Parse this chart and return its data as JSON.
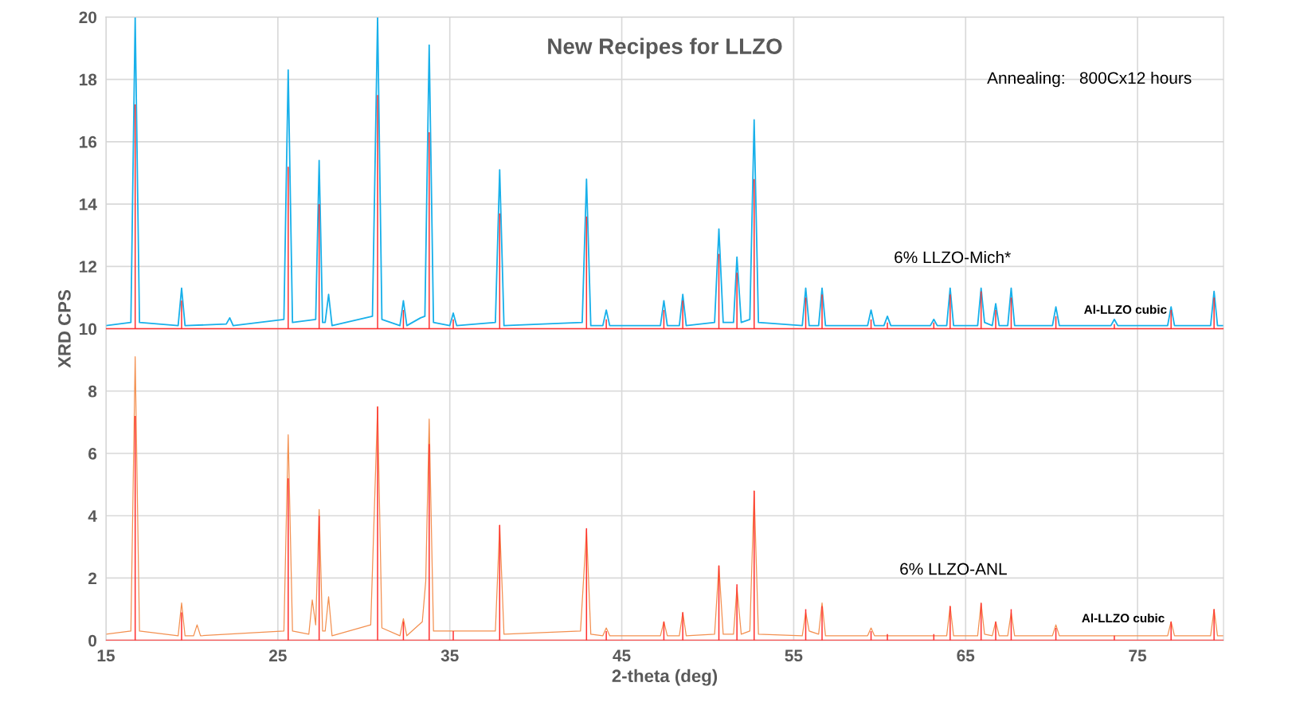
{
  "chart_data": {
    "type": "line",
    "title": "New Recipes for LLZO",
    "xlabel": "2-theta (deg)",
    "ylabel": "XRD CPS",
    "xlim": [
      15,
      80
    ],
    "xticks": [
      15,
      25,
      35,
      45,
      55,
      65,
      75
    ],
    "ylim": [
      0,
      20
    ],
    "yticks": [
      0,
      2,
      4,
      6,
      8,
      10,
      12,
      14,
      16,
      18,
      20
    ],
    "grid": true,
    "annotations": [
      "Annealing:   800Cx12 hours"
    ],
    "ref_lines": [
      {
        "axis": "y",
        "value": 10,
        "color": "#ff3030"
      },
      {
        "axis": "y",
        "value": 0,
        "color": "#ff3030"
      }
    ],
    "series": [
      {
        "name": "6% LLZO-Mich*",
        "color": "#18b0ea",
        "x": [
          15,
          16.45,
          16.7,
          16.95,
          19.2,
          19.4,
          19.6,
          22.0,
          22.2,
          22.4,
          25.35,
          25.6,
          25.85,
          27.2,
          27.4,
          27.6,
          27.75,
          27.95,
          28.15,
          30.5,
          30.8,
          31.05,
          32.1,
          32.3,
          32.5,
          33.3,
          33.55,
          33.8,
          34.05,
          35.0,
          35.2,
          35.4,
          37.65,
          37.9,
          38.15,
          42.7,
          42.95,
          43.2,
          43.9,
          44.1,
          44.3,
          47.25,
          47.45,
          47.65,
          48.35,
          48.55,
          48.75,
          50.4,
          50.65,
          50.9,
          51.5,
          51.7,
          51.95,
          52.45,
          52.7,
          52.95,
          55.5,
          55.7,
          55.9,
          56.45,
          56.65,
          56.85,
          59.3,
          59.5,
          59.7,
          60.25,
          60.45,
          60.65,
          62.95,
          63.15,
          63.35,
          63.9,
          64.1,
          64.3,
          65.7,
          65.9,
          66.1,
          66.55,
          66.75,
          66.95,
          67.45,
          67.65,
          67.85,
          70.05,
          70.25,
          70.45,
          73.45,
          73.65,
          73.85,
          76.75,
          76.95,
          77.15,
          79.25,
          79.45,
          79.65,
          80
        ],
        "values": [
          10.1,
          10.2,
          20,
          10.2,
          10.1,
          11.3,
          10.1,
          10.15,
          10.35,
          10.1,
          10.3,
          18.3,
          10.2,
          10.3,
          15.4,
          10.2,
          10.2,
          11.1,
          10.1,
          10.4,
          20,
          10.3,
          10.1,
          10.9,
          10.1,
          10.35,
          10.4,
          19.1,
          10.2,
          10.1,
          10.5,
          10.1,
          10.2,
          15.1,
          10.1,
          10.2,
          14.8,
          10.1,
          10.1,
          10.6,
          10.1,
          10.1,
          10.9,
          10.1,
          10.1,
          11.1,
          10.1,
          10.2,
          13.2,
          10.2,
          10.2,
          12.3,
          10.2,
          10.3,
          16.7,
          10.2,
          10.1,
          11.3,
          10.1,
          10.1,
          11.3,
          10.1,
          10.1,
          10.6,
          10.1,
          10.1,
          10.4,
          10.1,
          10.1,
          10.3,
          10.1,
          10.1,
          11.3,
          10.1,
          10.1,
          11.3,
          10.2,
          10.1,
          10.8,
          10.1,
          10.1,
          11.3,
          10.1,
          10.1,
          10.7,
          10.1,
          10.1,
          10.3,
          10.1,
          10.1,
          10.7,
          10.1,
          10.1,
          11.2,
          10.1,
          10.1
        ]
      },
      {
        "name": "6% LLZO-ANL",
        "color": "#f39050",
        "x": [
          15,
          16.45,
          16.7,
          16.95,
          19.2,
          19.4,
          19.6,
          20.1,
          20.3,
          20.5,
          25.35,
          25.6,
          25.85,
          26.8,
          27.0,
          27.2,
          27.4,
          27.6,
          27.75,
          27.95,
          28.15,
          30.4,
          30.8,
          31.05,
          32.1,
          32.3,
          32.5,
          33.4,
          33.6,
          33.8,
          34.05,
          37.65,
          37.9,
          38.15,
          42.6,
          42.95,
          43.2,
          43.9,
          44.1,
          44.3,
          47.25,
          47.45,
          47.65,
          48.35,
          48.55,
          48.75,
          50.4,
          50.65,
          50.9,
          51.5,
          51.7,
          51.95,
          52.45,
          52.7,
          52.95,
          55.5,
          55.7,
          55.9,
          56.45,
          56.65,
          56.85,
          59.3,
          59.5,
          59.7,
          63.9,
          64.1,
          64.3,
          65.7,
          65.9,
          66.1,
          66.55,
          66.75,
          66.95,
          67.45,
          67.65,
          67.85,
          70.05,
          70.25,
          70.45,
          76.75,
          76.95,
          77.15,
          79.25,
          79.45,
          79.65,
          80
        ],
        "values": [
          0.2,
          0.3,
          9.1,
          0.3,
          0.15,
          1.2,
          0.15,
          0.15,
          0.5,
          0.15,
          0.3,
          6.6,
          0.3,
          0.2,
          1.3,
          0.5,
          4.2,
          0.3,
          0.3,
          1.4,
          0.15,
          0.5,
          7.5,
          0.4,
          0.15,
          0.7,
          0.15,
          0.6,
          1.9,
          7.1,
          0.3,
          0.3,
          3.7,
          0.2,
          0.3,
          3.55,
          0.2,
          0.15,
          0.4,
          0.15,
          0.15,
          0.6,
          0.15,
          0.15,
          0.9,
          0.15,
          0.2,
          2.4,
          0.2,
          0.2,
          1.7,
          0.2,
          0.3,
          4.8,
          0.2,
          0.15,
          0.9,
          0.3,
          0.2,
          1.2,
          0.15,
          0.15,
          0.4,
          0.15,
          0.15,
          1.1,
          0.15,
          0.15,
          1.2,
          0.2,
          0.15,
          0.6,
          0.15,
          0.15,
          0.9,
          0.15,
          0.15,
          0.5,
          0.15,
          0.15,
          0.6,
          0.15,
          0.15,
          1.0,
          0.15,
          0.15
        ]
      },
      {
        "name": "Al-LLZO cubic",
        "type": "bar",
        "color": "#ff3030",
        "x": [
          16.7,
          19.4,
          25.6,
          27.4,
          30.8,
          32.3,
          33.8,
          35.2,
          37.9,
          42.95,
          44.1,
          47.45,
          48.55,
          50.65,
          51.7,
          52.7,
          55.7,
          56.65,
          59.5,
          60.45,
          63.15,
          64.1,
          65.9,
          66.75,
          67.65,
          70.25,
          73.65,
          76.95,
          79.45
        ],
        "values": [
          7.2,
          0.9,
          5.2,
          4.0,
          7.5,
          0.6,
          6.3,
          0.3,
          3.7,
          3.6,
          0.3,
          0.6,
          0.9,
          2.4,
          1.8,
          4.8,
          1.0,
          1.1,
          0.3,
          0.2,
          0.2,
          1.1,
          1.2,
          0.6,
          1.0,
          0.4,
          0.15,
          0.6,
          1.0
        ],
        "base": [
          10,
          10,
          10,
          10,
          10,
          10,
          10,
          10,
          10,
          10,
          10,
          10,
          10,
          10,
          10,
          10,
          10,
          10,
          10,
          10,
          10,
          10,
          10,
          10,
          10,
          10,
          10,
          10,
          10
        ]
      },
      {
        "name": "Al-LLZO cubic",
        "type": "bar",
        "color": "#ff3030",
        "x": [
          16.7,
          19.4,
          25.6,
          27.4,
          30.8,
          32.3,
          33.8,
          35.2,
          37.9,
          42.95,
          44.1,
          47.45,
          48.55,
          50.65,
          51.7,
          52.7,
          55.7,
          56.65,
          59.5,
          60.45,
          63.15,
          64.1,
          65.9,
          66.75,
          67.65,
          70.25,
          73.65,
          76.95,
          79.45
        ],
        "values": [
          7.2,
          0.9,
          5.2,
          4.0,
          7.5,
          0.6,
          6.3,
          0.3,
          3.7,
          3.6,
          0.3,
          0.6,
          0.9,
          2.4,
          1.8,
          4.8,
          1.0,
          1.1,
          0.3,
          0.2,
          0.2,
          1.1,
          1.2,
          0.6,
          1.0,
          0.4,
          0.15,
          0.6,
          1.0
        ],
        "base": [
          0,
          0,
          0,
          0,
          0,
          0,
          0,
          0,
          0,
          0,
          0,
          0,
          0,
          0,
          0,
          0,
          0,
          0,
          0,
          0,
          0,
          0,
          0,
          0,
          0,
          0,
          0,
          0,
          0
        ]
      }
    ]
  }
}
